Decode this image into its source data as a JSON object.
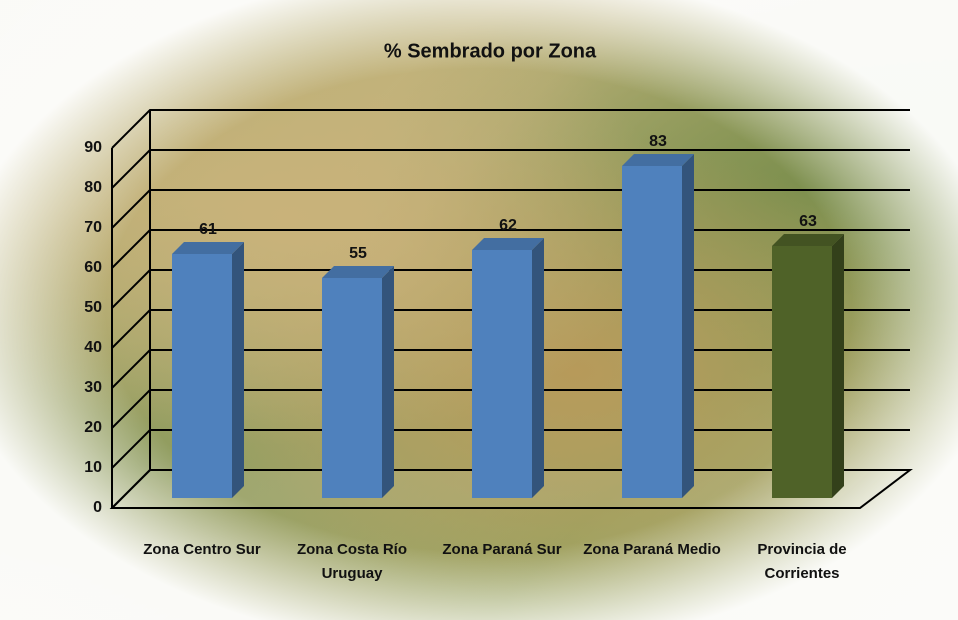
{
  "chart_data": {
    "type": "bar3d",
    "title": "% Sembrado por Zona",
    "categories": [
      "Zona Centro Sur",
      "Zona Costa Río Uruguay",
      "Zona Paraná Sur",
      "Zona Paraná Medio",
      "Provincia de Corrientes"
    ],
    "values": [
      61,
      55,
      62,
      83,
      63
    ],
    "colors": [
      "#4f81bd",
      "#4f81bd",
      "#4f81bd",
      "#4f81bd",
      "#4f6228"
    ],
    "ylim": [
      0,
      90
    ],
    "yticks": [
      0,
      10,
      20,
      30,
      40,
      50,
      60,
      70,
      80,
      90
    ],
    "grid": true
  }
}
